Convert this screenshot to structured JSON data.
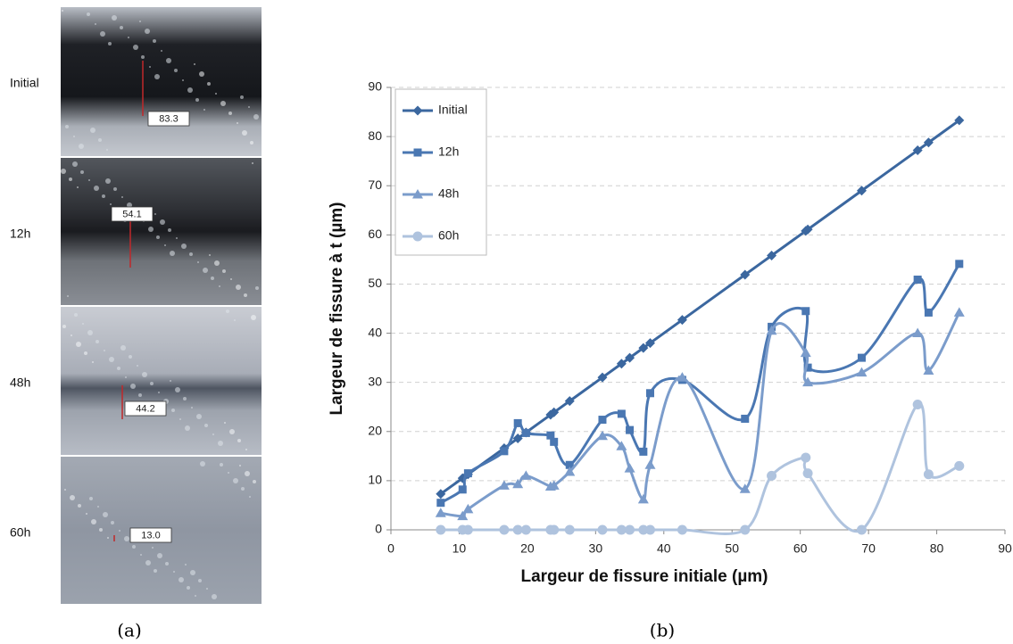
{
  "panel_a": {
    "caption": "(a)",
    "images": [
      {
        "label": "Initial",
        "measurement": "83.3"
      },
      {
        "label": "12h",
        "measurement": "54.1"
      },
      {
        "label": "48h",
        "measurement": "44.2"
      },
      {
        "label": "60h",
        "measurement": "13.0"
      }
    ]
  },
  "panel_b": {
    "caption": "(b)"
  },
  "chart_data": {
    "type": "line",
    "smooth": true,
    "xlabel": "Largeur de fissure initiale (µm)",
    "ylabel": "Largeur de fissure à t (µm)",
    "xlim": [
      0,
      90
    ],
    "xticks": [
      0,
      10,
      20,
      30,
      40,
      50,
      60,
      70,
      80,
      90
    ],
    "ylim": [
      0,
      90
    ],
    "yticks": [
      0,
      10,
      20,
      30,
      40,
      50,
      60,
      70,
      80,
      90
    ],
    "grid": true,
    "legend": "upper left",
    "x": [
      7.3,
      10.5,
      11.3,
      16.6,
      18.6,
      19.8,
      23.4,
      23.9,
      26.2,
      31.0,
      33.8,
      35.0,
      37.0,
      38.0,
      42.7,
      51.9,
      55.8,
      60.8,
      61.1,
      69.0,
      77.2,
      78.8,
      83.3
    ],
    "series": [
      {
        "name": "Initial",
        "color": "#3b679f",
        "marker": "diamond",
        "values": [
          7.3,
          10.5,
          11.3,
          16.6,
          18.6,
          19.8,
          23.4,
          23.9,
          26.2,
          31.0,
          33.8,
          35.0,
          37.0,
          38.0,
          42.7,
          51.9,
          55.8,
          60.8,
          61.1,
          69.0,
          77.2,
          78.8,
          83.3
        ]
      },
      {
        "name": "12h",
        "color": "#4a77b2",
        "marker": "square",
        "values": [
          5.5,
          8.2,
          11.5,
          16.0,
          21.7,
          19.7,
          19.2,
          17.9,
          13.2,
          22.4,
          23.6,
          20.3,
          15.9,
          27.8,
          30.5,
          22.6,
          41.3,
          44.5,
          33.0,
          35.0,
          50.9,
          44.2,
          54.1
        ]
      },
      {
        "name": "48h",
        "color": "#7b9ccb",
        "marker": "triangle",
        "values": [
          3.4,
          2.8,
          4.2,
          9.0,
          9.3,
          11.0,
          8.8,
          9.0,
          11.8,
          19.1,
          17.0,
          12.5,
          6.2,
          13.2,
          31.0,
          8.3,
          40.5,
          36.0,
          30.0,
          32.0,
          40.0,
          32.4,
          44.2
        ]
      },
      {
        "name": "60h",
        "color": "#afc3de",
        "marker": "circle",
        "values": [
          0,
          0,
          0,
          0,
          0,
          0,
          0,
          0,
          0,
          0,
          0,
          0,
          0,
          0,
          0,
          0,
          11.0,
          14.7,
          11.5,
          0,
          25.5,
          11.3,
          13.0
        ]
      }
    ]
  }
}
